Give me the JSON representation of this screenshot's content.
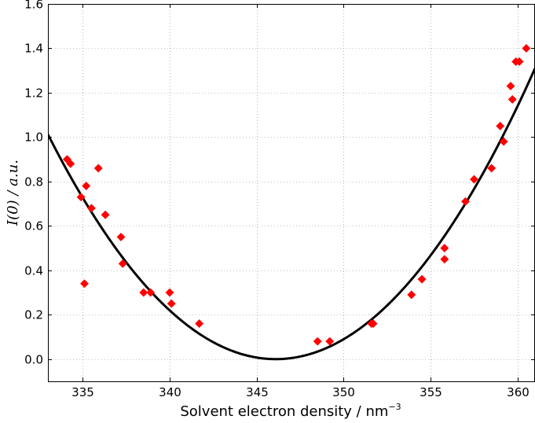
{
  "chart_data": {
    "type": "scatter",
    "xlabel": "Solvent electron density / nm",
    "xlabel_exponent": "−3",
    "ylabel": "I(0) / a.u.",
    "xlim": [
      333,
      361
    ],
    "ylim": [
      -0.1,
      1.6
    ],
    "xticks": [
      "335",
      "340",
      "345",
      "350",
      "355",
      "360"
    ],
    "yticks": [
      "0.0",
      "0.2",
      "0.4",
      "0.6",
      "0.8",
      "1.0",
      "1.2",
      "1.4",
      "1.6"
    ],
    "grid": true,
    "colors": {
      "points": "#ff0000",
      "fit": "#000000"
    },
    "series": [
      {
        "kind": "points",
        "marker": "diamond",
        "x": [
          334.1,
          334.3,
          334.9,
          335.1,
          335.2,
          335.5,
          335.9,
          336.3,
          337.2,
          337.3,
          338.5,
          338.9,
          340.0,
          340.1,
          341.7,
          348.5,
          349.2,
          351.6,
          351.7,
          353.9,
          354.5,
          355.8,
          355.8,
          357.0,
          357.5,
          358.5,
          359.0,
          359.2,
          359.6,
          359.7,
          359.9,
          360.1,
          360.5
        ],
        "y": [
          0.9,
          0.88,
          0.73,
          0.34,
          0.78,
          0.68,
          0.86,
          0.65,
          0.55,
          0.43,
          0.3,
          0.3,
          0.3,
          0.25,
          0.16,
          0.08,
          0.08,
          0.16,
          0.16,
          0.29,
          0.36,
          0.45,
          0.5,
          0.71,
          0.81,
          0.86,
          1.05,
          0.98,
          1.23,
          1.17,
          1.34,
          1.34,
          1.4
        ]
      },
      {
        "kind": "fit",
        "vertex_x": 346.1,
        "vertex_y": 0.0,
        "curvature": 0.0059
      }
    ]
  }
}
